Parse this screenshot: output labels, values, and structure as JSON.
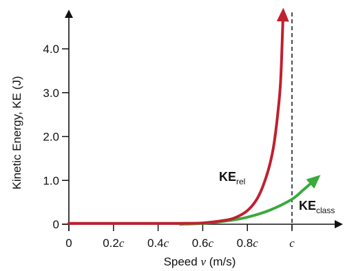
{
  "chart_data": {
    "type": "line",
    "xlabel": {
      "prefix": "Speed ",
      "var": "v",
      "suffix": " (m/s)"
    },
    "ylabel": "Kinetic Energy, KE (J)",
    "xlim": [
      0,
      1.1
    ],
    "ylim": [
      0,
      4.9
    ],
    "x_ticks": [
      {
        "value": 0,
        "num": "0",
        "unit": ""
      },
      {
        "value": 0.2,
        "num": "0.2",
        "unit": "c"
      },
      {
        "value": 0.4,
        "num": "0.4",
        "unit": "c"
      },
      {
        "value": 0.6,
        "num": "0.6",
        "unit": "c"
      },
      {
        "value": 0.8,
        "num": "0.8",
        "unit": "c"
      },
      {
        "value": 1.0,
        "num": "",
        "unit": "c"
      }
    ],
    "y_ticks": [
      {
        "value": 0,
        "label": "0"
      },
      {
        "value": 1,
        "label": "1.0"
      },
      {
        "value": 2,
        "label": "2.0"
      },
      {
        "value": 3,
        "label": "3.0"
      },
      {
        "value": 4,
        "label": "4.0"
      }
    ],
    "vertical_line": {
      "x": 1.0,
      "style": "dashed"
    },
    "series": [
      {
        "id": "rel",
        "label_main": "KE",
        "label_sub": "rel",
        "color": "#c0202f",
        "x": [
          0,
          0.2,
          0.4,
          0.5,
          0.6,
          0.7,
          0.75,
          0.8,
          0.84,
          0.87,
          0.9,
          0.92,
          0.94,
          0.95,
          0.96
        ],
        "y": [
          0.02,
          0.02,
          0.02,
          0.02,
          0.03,
          0.09,
          0.16,
          0.31,
          0.55,
          0.87,
          1.35,
          1.85,
          2.7,
          3.35,
          4.75
        ]
      },
      {
        "id": "class",
        "label_main": "KE",
        "label_sub": "class",
        "color": "#3aaa3a",
        "x": [
          0.5,
          0.6,
          0.7,
          0.8,
          0.9,
          1.0,
          1.05,
          1.1
        ],
        "y": [
          0.0,
          0.02,
          0.07,
          0.16,
          0.32,
          0.57,
          0.78,
          1.0
        ]
      }
    ]
  }
}
